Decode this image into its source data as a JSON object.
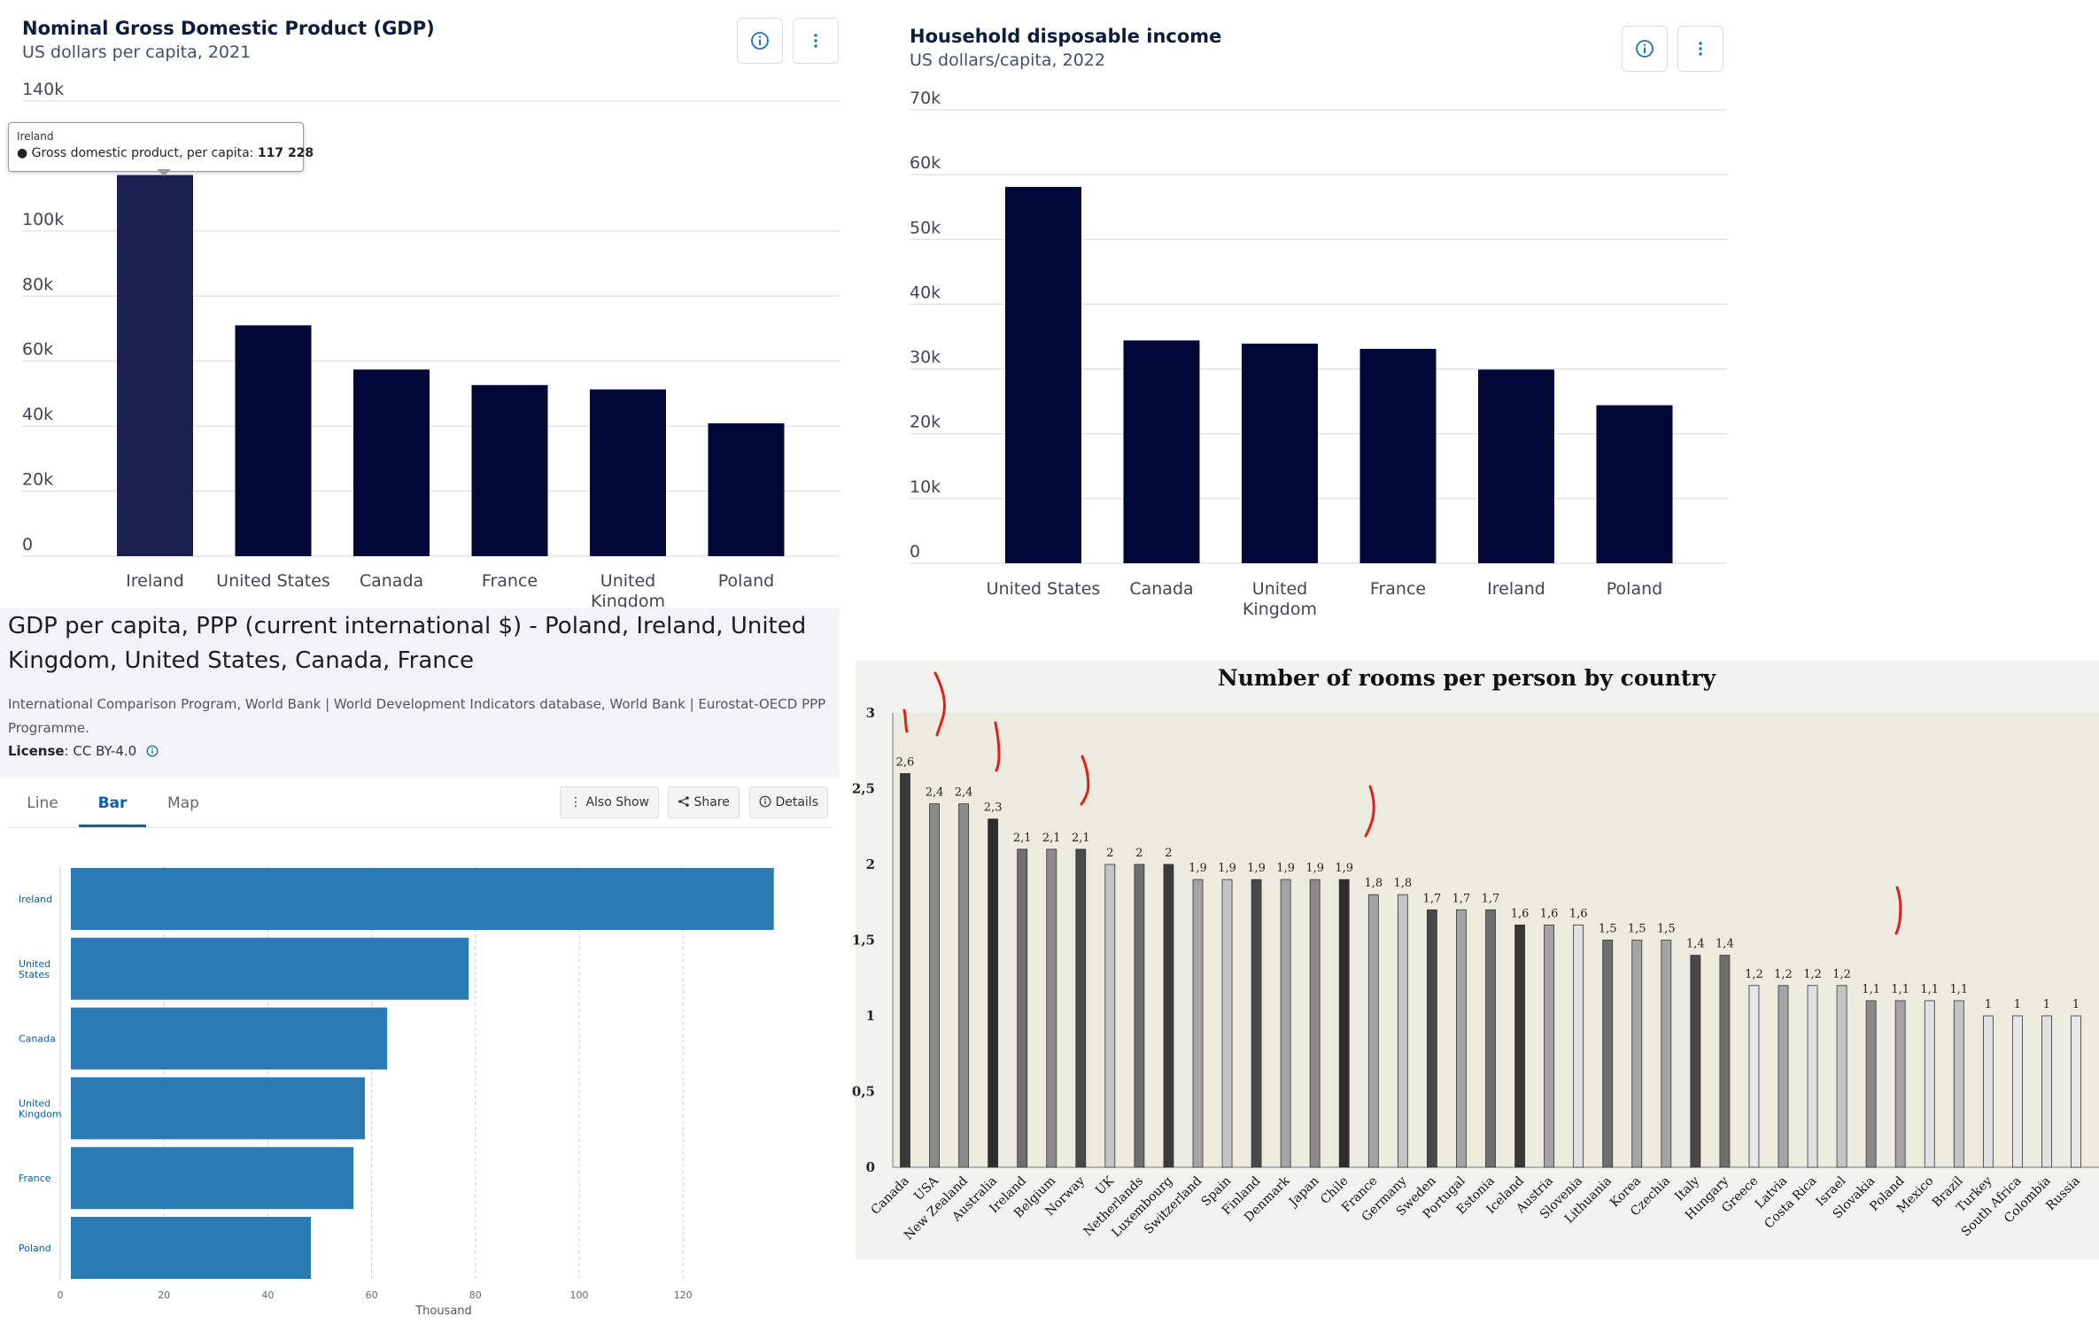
{
  "gdp_panel": {
    "title": "Nominal Gross Domestic Product (GDP)",
    "subtitle": "US dollars per capita, 2021",
    "tooltip": {
      "country": "Ireland",
      "series_label": "Gross domestic product, per capita:",
      "value": "117 228"
    },
    "icons": [
      "info-icon",
      "more-vertical-icon"
    ]
  },
  "income_panel": {
    "title": "Household disposable income",
    "subtitle": "US dollars/capita, 2022",
    "icons": [
      "info-icon",
      "more-vertical-icon"
    ]
  },
  "ppp_panel": {
    "title": "GDP per capita, PPP (current international $) - Poland, Ireland, United Kingdom, United States, Canada, France",
    "source": "International Comparison Program, World Bank | World Development Indicators database, World Bank | Eurostat-OECD PPP Programme.",
    "license_label": "License",
    "license_value": ": CC BY-4.0",
    "tabs": [
      "Line",
      "Bar",
      "Map"
    ],
    "active_tab": "Bar",
    "buttons": {
      "also_show": "Also Show",
      "share": "Share",
      "details": "Details"
    }
  },
  "rooms_panel": {
    "title": "Number of rooms per person by country"
  },
  "colors": {
    "navy_bar": "#000837",
    "highlight_bar": "#1c2051",
    "ppp_bar": "#2a7ab4",
    "link_blue": "#0b5ea8",
    "annotation_red": "#e0201a"
  },
  "chart_data": [
    {
      "type": "bar",
      "title": "Nominal Gross Domestic Product (GDP)",
      "subtitle": "US dollars per capita, 2021",
      "categories": [
        "Ireland",
        "United States",
        "Canada",
        "France",
        "United Kingdom",
        "Poland"
      ],
      "category_labels": [
        [
          "Ireland"
        ],
        [
          "United States"
        ],
        [
          "Canada"
        ],
        [
          "France"
        ],
        [
          "United",
          "Kingdom"
        ],
        [
          "Poland"
        ]
      ],
      "values": [
        117228,
        70996,
        57406,
        52626,
        51293,
        40861
      ],
      "ylim": [
        0,
        140000
      ],
      "y_ticks": [
        0,
        20000,
        40000,
        60000,
        80000,
        100000,
        140000
      ],
      "y_tick_labels": [
        "0",
        "20k",
        "40k",
        "60k",
        "80k",
        "100k",
        "140k"
      ],
      "grid": true,
      "highlight_index": 0
    },
    {
      "type": "bar",
      "title": "Household disposable income",
      "subtitle": "US dollars/capita, 2022",
      "categories": [
        "United States",
        "Canada",
        "United Kingdom",
        "France",
        "Ireland",
        "Poland"
      ],
      "category_labels": [
        [
          "United States"
        ],
        [
          "Canada"
        ],
        [
          "United",
          "Kingdom"
        ],
        [
          "France"
        ],
        [
          "Ireland"
        ],
        [
          "Poland"
        ]
      ],
      "values": [
        58100,
        34400,
        33900,
        33100,
        29900,
        24400
      ],
      "ylim": [
        0,
        70000
      ],
      "y_ticks": [
        0,
        10000,
        20000,
        30000,
        40000,
        50000,
        60000,
        70000
      ],
      "y_tick_labels": [
        "0",
        "10k",
        "20k",
        "30k",
        "40k",
        "50k",
        "60k",
        "70k"
      ],
      "grid": true
    },
    {
      "type": "bar",
      "orientation": "horizontal",
      "title": "GDP per capita, PPP (current international $) - Poland, Ireland, United Kingdom, United States, Canada, France",
      "categories": [
        "Ireland",
        "United States",
        "Canada",
        "United Kingdom",
        "France",
        "Poland"
      ],
      "category_labels": [
        [
          "Ireland"
        ],
        [
          "United",
          "States"
        ],
        [
          "Canada"
        ],
        [
          "United",
          "Kingdom"
        ],
        [
          "France"
        ],
        [
          "Poland"
        ]
      ],
      "values": [
        137.5,
        78.7,
        63.0,
        58.7,
        56.5,
        48.3
      ],
      "xlim": [
        0,
        140
      ],
      "x_ticks": [
        0,
        20,
        40,
        60,
        80,
        100,
        120
      ],
      "xlabel": "Thousand",
      "grid": true
    },
    {
      "type": "bar",
      "title": "Number of rooms per person by country",
      "categories": [
        "Canada",
        "USA",
        "New Zealand",
        "Australia",
        "Ireland",
        "Belgium",
        "Norway",
        "UK",
        "Netherlands",
        "Luxembourg",
        "Switzerland",
        "Spain",
        "Finland",
        "Denmark",
        "Japan",
        "Chile",
        "France",
        "Germany",
        "Sweden",
        "Portugal",
        "Estonia",
        "Iceland",
        "Austria",
        "Slovenia",
        "Lithuania",
        "Korea",
        "Czechia",
        "Italy",
        "Hungary",
        "Greece",
        "Latvia",
        "Costa Rica",
        "Israel",
        "Slovakia",
        "Poland",
        "Mexico",
        "Brazil",
        "Turkey",
        "South Africa",
        "Colombia",
        "Russia"
      ],
      "values": [
        2.6,
        2.4,
        2.4,
        2.3,
        2.1,
        2.1,
        2.1,
        2,
        2,
        2,
        1.9,
        1.9,
        1.9,
        1.9,
        1.9,
        1.9,
        1.8,
        1.8,
        1.7,
        1.7,
        1.7,
        1.6,
        1.6,
        1.6,
        1.5,
        1.5,
        1.5,
        1.4,
        1.4,
        1.2,
        1.2,
        1.2,
        1.2,
        1.1,
        1.1,
        1.1,
        1.1,
        1,
        1,
        1,
        1
      ],
      "value_labels": [
        "2,6",
        "2,4",
        "2,4",
        "2,3",
        "2,1",
        "2,1",
        "2,1",
        "2",
        "2",
        "2",
        "1,9",
        "1,9",
        "1,9",
        "1,9",
        "1,9",
        "1,9",
        "1,8",
        "1,8",
        "1,7",
        "1,7",
        "1,7",
        "1,6",
        "1,6",
        "1,6",
        "1,5",
        "1,5",
        "1,5",
        "1,4",
        "1,4",
        "1,2",
        "1,2",
        "1,2",
        "1,2",
        "1,1",
        "1,1",
        "1,1",
        "1,1",
        "1",
        "1",
        "1",
        "1"
      ],
      "bar_colors": [
        "#383838",
        "#8a8a8a",
        "#8a8a8a",
        "#2d2d2d",
        "#6e6e6e",
        "#8a8a8a",
        "#484848",
        "#c4c4c4",
        "#6e6e6e",
        "#3a3a3a",
        "#a4a4a4",
        "#c4c4c4",
        "#484848",
        "#a4a4a4",
        "#8a8a8a",
        "#2d2d2d",
        "#a4a4a4",
        "#c4c4c4",
        "#484848",
        "#a4a4a4",
        "#6e6e6e",
        "#383838",
        "#a4a4a4",
        "#e0e0e0",
        "#6e6e6e",
        "#a4a4a4",
        "#a4a4a4",
        "#484848",
        "#6e6e6e",
        "#e8e8e8",
        "#a4a4a4",
        "#e0e0e0",
        "#c4c4c4",
        "#8a8a8a",
        "#a4a4a4",
        "#e0e0e0",
        "#c4c4c4",
        "#e0e0e0",
        "#e8e8e8",
        "#e0e0e0",
        "#e8e8e8"
      ],
      "ylim": [
        0,
        3
      ],
      "y_ticks": [
        0,
        0.5,
        1,
        1.5,
        2,
        2.5,
        3
      ],
      "y_tick_labels": [
        "0",
        "0,5",
        "1",
        "1,5",
        "2",
        "2,5",
        "3"
      ],
      "grid": false
    }
  ]
}
